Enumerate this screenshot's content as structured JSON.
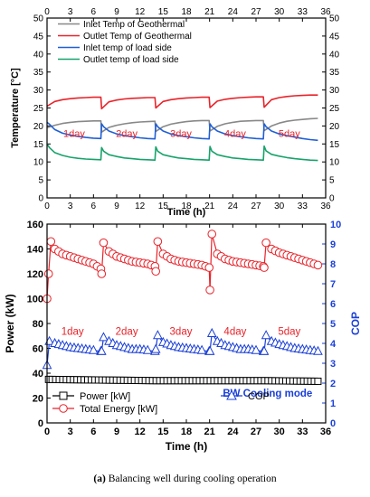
{
  "caption": {
    "label": "(a)",
    "text": " Balancing well during cooling operation"
  },
  "chart_data": [
    {
      "type": "line",
      "xlabel": "Time (h)",
      "ylabel": "Temperature [°C]",
      "xlim": [
        0,
        36
      ],
      "ylim": [
        0,
        50
      ],
      "xticks": [
        0,
        3,
        6,
        9,
        12,
        15,
        18,
        21,
        24,
        27,
        30,
        33,
        36
      ],
      "yticks": [
        0,
        5,
        10,
        15,
        20,
        25,
        30,
        35,
        40,
        45,
        50
      ],
      "grid": false,
      "legend_position": "top-left",
      "annotations": [
        {
          "text": "1day",
          "x": 3.5,
          "y": 17
        },
        {
          "text": "2day",
          "x": 10.3,
          "y": 17
        },
        {
          "text": "3day",
          "x": 17.3,
          "y": 17
        },
        {
          "text": "4day",
          "x": 24.3,
          "y": 17
        },
        {
          "text": "5day",
          "x": 31.3,
          "y": 17
        }
      ],
      "series": [
        {
          "name": "Inlet Temp of Geothermal",
          "color": "#888888",
          "x": [
            0,
            1,
            2,
            3,
            4,
            5,
            6,
            6.95,
            7.05,
            8,
            9,
            10,
            11,
            12,
            13,
            13.95,
            14.05,
            15,
            16,
            17,
            18,
            19,
            20,
            20.95,
            21.05,
            22,
            23,
            24,
            25,
            26,
            27,
            27.95,
            28.05,
            29,
            30,
            31,
            32,
            33,
            34,
            35
          ],
          "y": [
            19.5,
            20.2,
            20.7,
            21.0,
            21.2,
            21.3,
            21.4,
            21.4,
            18.3,
            19.6,
            20.2,
            20.6,
            20.9,
            21.1,
            21.2,
            21.3,
            18.5,
            19.8,
            20.5,
            20.9,
            21.2,
            21.4,
            21.5,
            21.5,
            18.6,
            19.9,
            20.6,
            21.0,
            21.3,
            21.4,
            21.5,
            21.5,
            18.7,
            20.0,
            20.8,
            21.3,
            21.6,
            21.8,
            22.0,
            22.1
          ]
        },
        {
          "name": "Outlet Temp of Geothermal",
          "color": "#e8232a",
          "x": [
            0,
            1,
            2,
            3,
            4,
            5,
            6,
            6.95,
            7.05,
            8,
            9,
            10,
            11,
            12,
            13,
            13.95,
            14.05,
            15,
            16,
            17,
            18,
            19,
            20,
            20.95,
            21.05,
            22,
            23,
            24,
            25,
            26,
            27,
            27.95,
            28.05,
            29,
            30,
            31,
            32,
            33,
            34,
            35
          ],
          "y": [
            25.5,
            26.8,
            27.3,
            27.6,
            27.8,
            27.9,
            28.0,
            28.0,
            24.8,
            26.7,
            27.2,
            27.5,
            27.7,
            27.8,
            27.9,
            27.9,
            25.0,
            26.8,
            27.3,
            27.6,
            27.8,
            27.9,
            28.0,
            28.0,
            25.1,
            26.9,
            27.4,
            27.7,
            27.9,
            28.0,
            28.1,
            28.1,
            25.2,
            27.3,
            27.9,
            28.2,
            28.4,
            28.5,
            28.6,
            28.6
          ]
        },
        {
          "name": "Inlet temp of load side",
          "color": "#1f5fd6",
          "x": [
            0,
            0.3,
            1,
            2,
            3,
            4,
            5,
            6,
            6.95,
            7.05,
            7.3,
            8,
            9,
            10,
            11,
            12,
            13,
            13.95,
            14.05,
            14.3,
            15,
            16,
            17,
            18,
            19,
            20,
            20.95,
            21.05,
            21.3,
            22,
            23,
            24,
            25,
            26,
            27,
            27.95,
            28.05,
            28.3,
            29,
            30,
            31,
            32,
            33,
            34,
            35
          ],
          "y": [
            21.0,
            20.5,
            19.0,
            18.0,
            17.5,
            17.1,
            16.8,
            16.6,
            16.5,
            20.6,
            19.8,
            18.6,
            17.8,
            17.3,
            17.0,
            16.7,
            16.5,
            16.4,
            20.6,
            19.8,
            18.6,
            17.8,
            17.3,
            17.0,
            16.7,
            16.5,
            16.4,
            20.6,
            19.8,
            18.6,
            17.8,
            17.3,
            17.0,
            16.7,
            16.5,
            16.4,
            20.6,
            19.8,
            18.6,
            17.8,
            17.3,
            16.9,
            16.5,
            16.2,
            16.0
          ]
        },
        {
          "name": "Outlet temp of load side",
          "color": "#17a36b",
          "x": [
            0,
            0.3,
            1,
            2,
            3,
            4,
            5,
            6,
            6.95,
            7.05,
            7.3,
            8,
            9,
            10,
            11,
            12,
            13,
            13.95,
            14.05,
            14.3,
            15,
            16,
            17,
            18,
            19,
            20,
            20.95,
            21.05,
            21.3,
            22,
            23,
            24,
            25,
            26,
            27,
            27.95,
            28.05,
            28.3,
            29,
            30,
            31,
            32,
            33,
            34,
            35
          ],
          "y": [
            15.0,
            14.0,
            12.6,
            11.8,
            11.3,
            11.0,
            10.8,
            10.7,
            10.6,
            14.0,
            13.0,
            12.0,
            11.5,
            11.1,
            10.9,
            10.7,
            10.6,
            10.5,
            14.2,
            13.0,
            12.0,
            11.5,
            11.1,
            10.9,
            10.7,
            10.6,
            10.5,
            14.3,
            13.0,
            12.0,
            11.5,
            11.1,
            10.9,
            10.7,
            10.6,
            10.5,
            14.4,
            13.1,
            12.1,
            11.6,
            11.2,
            10.9,
            10.7,
            10.5,
            10.4
          ]
        }
      ]
    },
    {
      "type": "line",
      "xlabel": "Time (h)",
      "ylabel": "Power (kW)",
      "ylabel_right": "COP",
      "xlim": [
        0,
        36
      ],
      "ylim": [
        0,
        160
      ],
      "ylim_right": [
        0,
        10
      ],
      "xticks": [
        0,
        3,
        6,
        9,
        12,
        15,
        18,
        21,
        24,
        27,
        30,
        33,
        36
      ],
      "yticks": [
        0,
        20,
        40,
        60,
        80,
        100,
        120,
        140,
        160
      ],
      "yticks_right": [
        0,
        1,
        2,
        3,
        4,
        5,
        6,
        7,
        8,
        9,
        10
      ],
      "grid": false,
      "legend_position": "bottom",
      "annotations": [
        {
          "text": "1day",
          "x": 3.3,
          "y": 71
        },
        {
          "text": "2day",
          "x": 10.3,
          "y": 71
        },
        {
          "text": "3day",
          "x": 17.3,
          "y": 71
        },
        {
          "text": "4day",
          "x": 24.3,
          "y": 71
        },
        {
          "text": "5day",
          "x": 31.3,
          "y": 71
        },
        {
          "text": "BW Cooling mode",
          "x": 28.5,
          "y": 21
        }
      ],
      "series": [
        {
          "name": "Power [kW]",
          "axis": "left",
          "color": "#000000",
          "marker": "square",
          "x": [
            0.2,
            7.1,
            14.1,
            21.1,
            28.1,
            35
          ],
          "y": [
            35,
            34.5,
            34,
            34,
            34,
            33.5
          ]
        },
        {
          "name": "Total Energy [kW]",
          "axis": "left",
          "color": "#e8232a",
          "marker": "circle",
          "x": [
            0,
            0.2,
            0.5,
            1,
            2,
            3,
            4,
            5,
            6,
            6.95,
            7.05,
            7.3,
            8,
            9,
            10,
            11,
            12,
            13,
            13.95,
            14.05,
            14.3,
            15,
            16,
            17,
            18,
            19,
            20,
            20.95,
            21.05,
            21.3,
            22,
            23,
            24,
            25,
            26,
            27,
            27.95,
            28.05,
            28.3,
            29,
            30,
            31,
            32,
            33,
            34,
            35
          ],
          "y": [
            100,
            120,
            146,
            140,
            136,
            134,
            132,
            130,
            128,
            124,
            120,
            145,
            138,
            134,
            132,
            130,
            129,
            128,
            126,
            122,
            146,
            136,
            132,
            130,
            129,
            128,
            127,
            125,
            107,
            152,
            136,
            132,
            130,
            129,
            128,
            127,
            126,
            125,
            145,
            140,
            137,
            135,
            133,
            131,
            129,
            127
          ]
        },
        {
          "name": "COP",
          "axis": "right",
          "color": "#1a3fd8",
          "marker": "triangle",
          "x": [
            0,
            0.3,
            1,
            2,
            3,
            4,
            5,
            6,
            6.95,
            7.05,
            7.3,
            8,
            9,
            10,
            11,
            12,
            13,
            13.95,
            14.05,
            14.3,
            15,
            16,
            17,
            18,
            19,
            20,
            20.95,
            21.05,
            21.3,
            22,
            23,
            24,
            25,
            26,
            27,
            27.95,
            28.05,
            28.3,
            29,
            30,
            31,
            32,
            33,
            34,
            35
          ],
          "y": [
            2.9,
            4.1,
            4.0,
            3.9,
            3.8,
            3.75,
            3.7,
            3.65,
            3.6,
            3.6,
            4.3,
            4.1,
            3.9,
            3.8,
            3.7,
            3.7,
            3.65,
            3.6,
            3.7,
            4.4,
            4.05,
            3.9,
            3.8,
            3.75,
            3.7,
            3.65,
            3.6,
            3.6,
            4.5,
            4.1,
            3.9,
            3.8,
            3.7,
            3.7,
            3.65,
            3.6,
            3.6,
            4.4,
            4.1,
            3.95,
            3.85,
            3.75,
            3.7,
            3.65,
            3.6
          ]
        }
      ]
    }
  ]
}
